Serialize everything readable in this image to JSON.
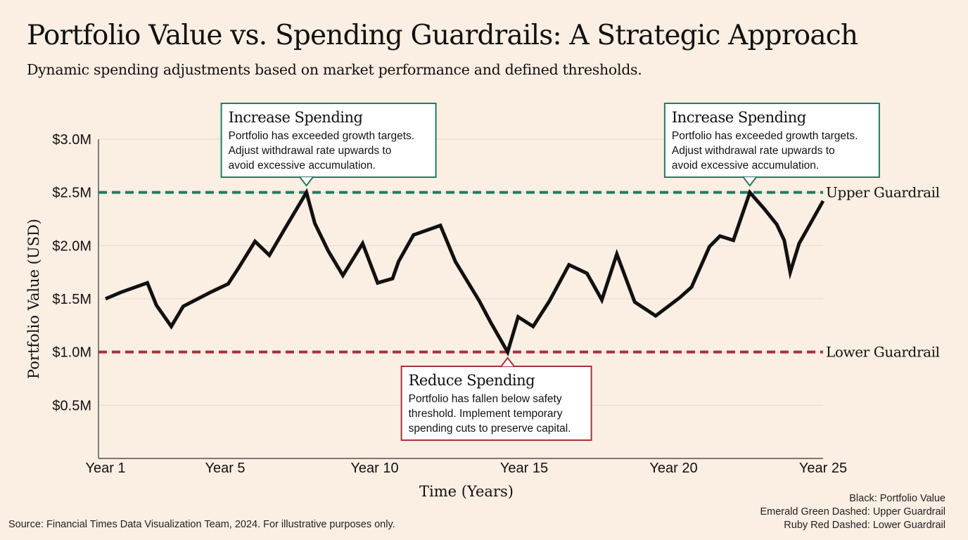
{
  "title": "Portfolio Value vs. Spending Guardrails: A Strategic Approach",
  "subtitle": "Dynamic spending adjustments based on market performance and defined thresholds.",
  "source": "Source: Financial Times Data Visualization Team, 2024. For illustrative purposes only.",
  "key": [
    "Black: Portfolio Value",
    "Emerald Green Dashed: Upper Guardrail",
    "Ruby Red Dashed: Lower Guardrail"
  ],
  "colors": {
    "background": "#fbeee3",
    "line": "#111111",
    "upper": "#1f7d62",
    "lower": "#a6323d",
    "grid": "#e6d9cf"
  },
  "chart_data": {
    "type": "line",
    "xlabel": "Time (Years)",
    "ylabel": "Portfolio Value (USD)",
    "xlim": [
      1,
      25
    ],
    "ylim": [
      0,
      3.0
    ],
    "x_ticks": [
      1,
      5,
      10,
      15,
      20,
      25
    ],
    "x_tick_labels": [
      "Year 1",
      "Year 5",
      "Year 10",
      "Year 15",
      "Year 20",
      "Year 25"
    ],
    "y_ticks": [
      0.5,
      1.0,
      1.5,
      2.0,
      2.5,
      3.0
    ],
    "y_tick_labels": [
      "$0.5M",
      "$1.0M",
      "$1.5M",
      "$2.0M",
      "$2.5M",
      "$3.0M"
    ],
    "grid": true,
    "series": [
      {
        "name": "Portfolio Value",
        "x": [
          1,
          1.5,
          2.4,
          2.7,
          3.2,
          3.6,
          4.5,
          5.1,
          5.45,
          6.0,
          6.48,
          7.0,
          7.72,
          8.0,
          8.45,
          8.94,
          9.6,
          10.1,
          10.6,
          10.8,
          11.3,
          12.2,
          12.7,
          13.5,
          13.88,
          14.45,
          14.8,
          15.3,
          15.85,
          16.5,
          17.1,
          17.6,
          18.1,
          18.7,
          19.4,
          20.2,
          20.6,
          21.2,
          21.55,
          22.0,
          22.55,
          23.05,
          23.45,
          23.7,
          23.9,
          24.2,
          25.0
        ],
        "y": [
          1.5,
          1.56,
          1.65,
          1.44,
          1.24,
          1.43,
          1.56,
          1.64,
          1.79,
          2.04,
          1.91,
          2.16,
          2.5,
          2.21,
          1.95,
          1.72,
          2.02,
          1.65,
          1.69,
          1.85,
          2.1,
          2.19,
          1.85,
          1.48,
          1.28,
          1.0,
          1.33,
          1.24,
          1.48,
          1.82,
          1.74,
          1.49,
          1.92,
          1.47,
          1.34,
          1.51,
          1.61,
          1.99,
          2.09,
          2.05,
          2.5,
          2.34,
          2.2,
          2.05,
          1.75,
          2.02,
          2.42
        ]
      }
    ],
    "guardrails": [
      {
        "name": "Upper Guardrail",
        "value": 2.5,
        "color": "#1f7d62"
      },
      {
        "name": "Lower Guardrail",
        "value": 1.0,
        "color": "#a6323d"
      }
    ],
    "annotations": [
      {
        "id": "inc1",
        "x": 7.72,
        "y": 2.5,
        "color": "#1f7d62",
        "pointer": "down",
        "heading": "Increase Spending",
        "lines": [
          "Portfolio has exceeded growth targets.",
          "Adjust withdrawal rate upwards to",
          "avoid excessive accumulation."
        ]
      },
      {
        "id": "inc2",
        "x": 22.55,
        "y": 2.5,
        "color": "#1f7d62",
        "pointer": "down",
        "heading": "Increase Spending",
        "lines": [
          "Portfolio has exceeded growth targets.",
          "Adjust withdrawal rate upwards to",
          "avoid excessive accumulation."
        ]
      },
      {
        "id": "red",
        "x": 14.45,
        "y": 1.0,
        "color": "#a6323d",
        "pointer": "up",
        "heading": "Reduce Spending",
        "lines": [
          "Portfolio has fallen below safety",
          "threshold. Implement temporary",
          "spending cuts to preserve capital."
        ]
      }
    ]
  }
}
